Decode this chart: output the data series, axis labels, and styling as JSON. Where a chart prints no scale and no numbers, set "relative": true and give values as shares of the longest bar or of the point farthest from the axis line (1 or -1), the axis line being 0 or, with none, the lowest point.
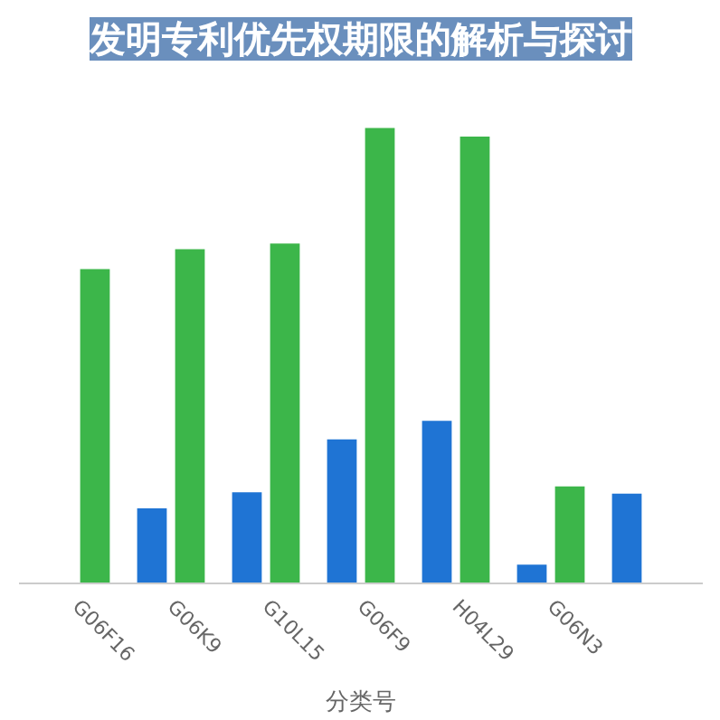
{
  "chart_data": {
    "type": "bar",
    "title": "发明专利优先权期限的解析与探讨",
    "xlabel": "分类号",
    "relative": true,
    "categories": [
      "G06F16",
      "G06K9",
      "G10L15",
      "G06F9",
      "H04L29",
      "G06N3",
      null
    ],
    "series": [
      {
        "color": "#1f74d4",
        "values": [
          null,
          0.165,
          0.2,
          0.316,
          0.357,
          0.041,
          0.197
        ]
      },
      {
        "color": "#3cb64a",
        "values": [
          0.69,
          0.734,
          0.746,
          1,
          0.981,
          0.213,
          null
        ]
      }
    ]
  }
}
